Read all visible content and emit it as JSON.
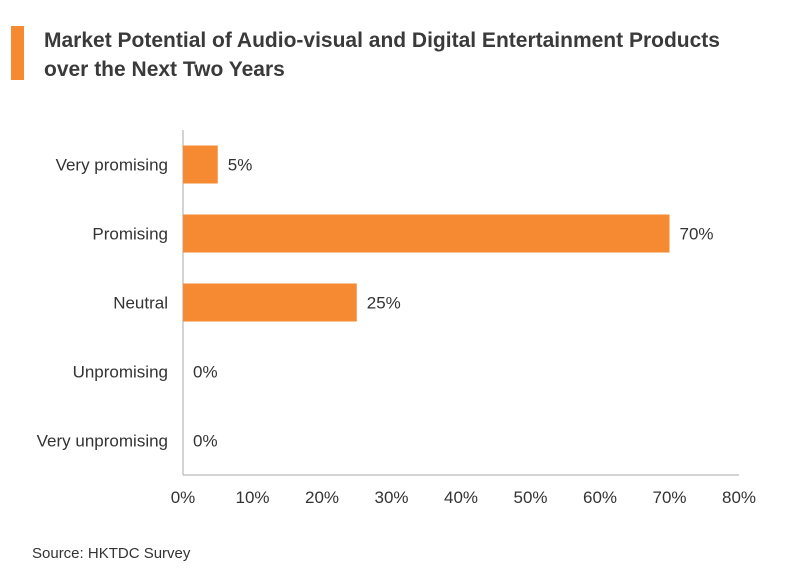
{
  "title": "Market Potential of Audio-visual and Digital Entertainment Products over the Next Two Years",
  "source": "Source: HKTDC Survey",
  "colors": {
    "accent": "#f58a33",
    "bar": "#f58a33",
    "axis": "#aaaaaa",
    "text": "#333333"
  },
  "chart_data": {
    "type": "bar",
    "orientation": "horizontal",
    "title": "Market Potential of Audio-visual and Digital Entertainment Products over the Next Two Years",
    "categories": [
      "Very promising",
      "Promising",
      "Neutral",
      "Unpromising",
      "Very unpromising"
    ],
    "values": [
      5,
      70,
      25,
      0,
      0
    ],
    "value_labels": [
      "5%",
      "70%",
      "25%",
      "0%",
      "0%"
    ],
    "xlim": [
      0,
      80
    ],
    "xticks": [
      0,
      10,
      20,
      30,
      40,
      50,
      60,
      70,
      80
    ],
    "xtick_labels": [
      "0%",
      "10%",
      "20%",
      "30%",
      "40%",
      "50%",
      "60%",
      "70%",
      "80%"
    ],
    "xlabel": "",
    "ylabel": "",
    "grid": false,
    "legend": "none"
  }
}
